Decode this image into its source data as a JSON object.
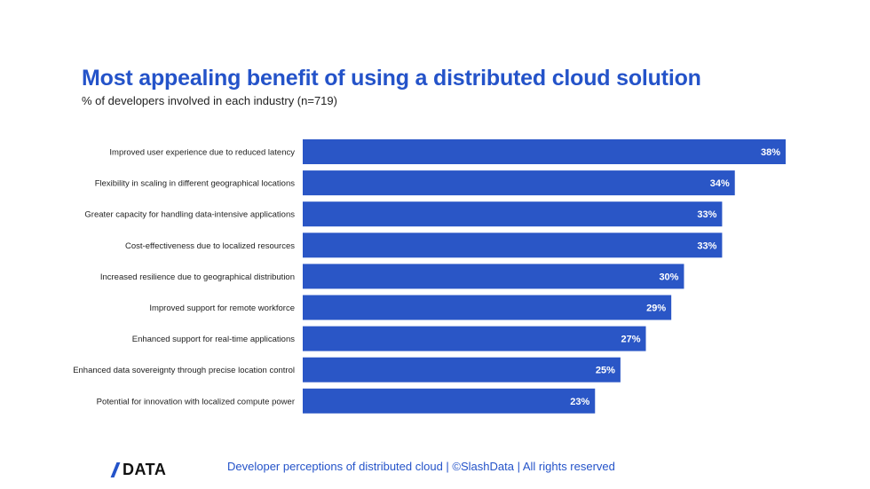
{
  "header": {
    "title": "Most appealing benefit of using a distributed cloud solution",
    "subtitle": "% of developers involved in each industry (n=719)"
  },
  "chart_data": {
    "type": "bar",
    "orientation": "horizontal",
    "categories": [
      "Improved user experience due to reduced latency",
      "Flexibility in scaling in different geographical locations",
      "Greater capacity for handling data-intensive applications",
      "Cost-effectiveness due to localized resources",
      "Increased resilience due to geographical distribution",
      "Improved support for remote workforce",
      "Enhanced support for real-time applications",
      "Enhanced data sovereignty through precise location control",
      "Potential for innovation with localized compute power"
    ],
    "values": [
      38,
      34,
      33,
      33,
      30,
      29,
      27,
      25,
      23
    ],
    "value_labels": [
      "38%",
      "34%",
      "33%",
      "33%",
      "30%",
      "29%",
      "27%",
      "25%",
      "23%"
    ],
    "xlim": [
      0,
      38
    ],
    "grid": false,
    "legend": "none",
    "bar_color": "#2a56c6"
  },
  "footer": {
    "logo_text": "DATA",
    "caption": "Developer perceptions of distributed cloud | ©SlashData | All rights reserved"
  },
  "colors": {
    "accent": "#2453c9",
    "bar": "#2a56c6",
    "text": "#222222"
  }
}
